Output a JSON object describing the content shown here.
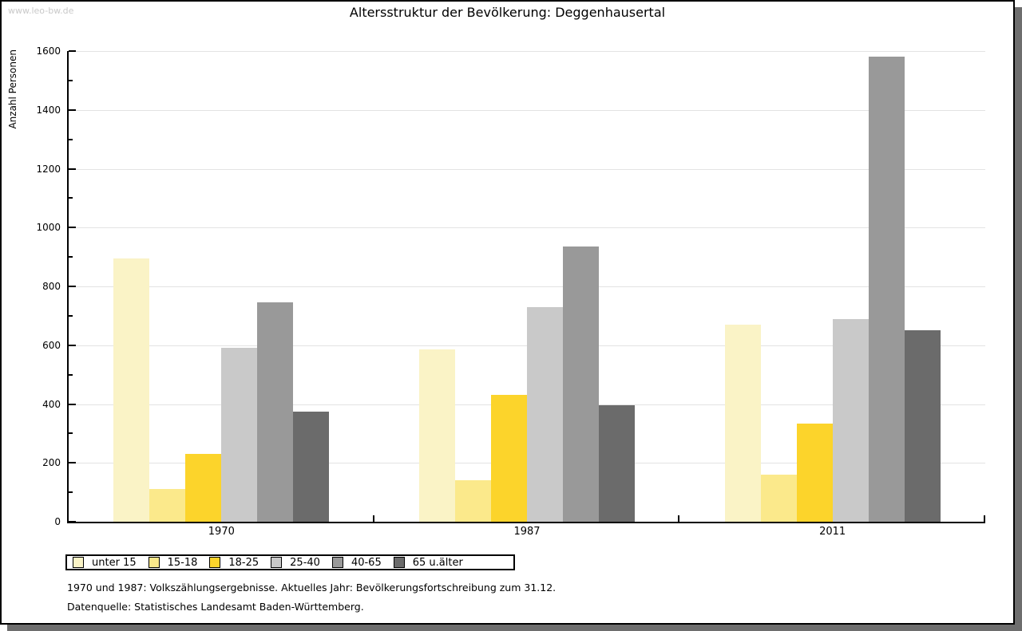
{
  "watermark": "www.leo-bw.de",
  "title": "Altersstruktur der Bevölkerung: Deggenhausertal",
  "footnotes": {
    "line1": "1970 und 1987: Volkszählungsergebnisse. Aktuelles Jahr: Bevölkerungsfortschreibung zum 31.12.",
    "line2": "Datenquelle: Statistisches Landesamt Baden-Württemberg."
  },
  "chart_data": {
    "type": "bar",
    "title": "Altersstruktur der Bevölkerung: Deggenhausertal",
    "xlabel": "",
    "ylabel": "Anzahl Personen",
    "categories": [
      "1970",
      "1987",
      "2011"
    ],
    "ylim": [
      0,
      1600
    ],
    "ytick_major_step": 200,
    "ytick_minor_step": 100,
    "grid": "horizontal-major",
    "legend_position": "bottom-left",
    "series": [
      {
        "name": "unter 15",
        "color": "#FAF3C6",
        "values": [
          895,
          585,
          670
        ]
      },
      {
        "name": "15-18",
        "color": "#FBE98B",
        "values": [
          110,
          140,
          160
        ]
      },
      {
        "name": "18-25",
        "color": "#FCD42B",
        "values": [
          230,
          430,
          335
        ]
      },
      {
        "name": "25-40",
        "color": "#C9C9C9",
        "values": [
          590,
          730,
          690
        ]
      },
      {
        "name": "40-65",
        "color": "#999999",
        "values": [
          745,
          935,
          1580
        ]
      },
      {
        "name": "65 u.älter",
        "color": "#6B6B6B",
        "values": [
          375,
          395,
          650
        ]
      }
    ]
  }
}
